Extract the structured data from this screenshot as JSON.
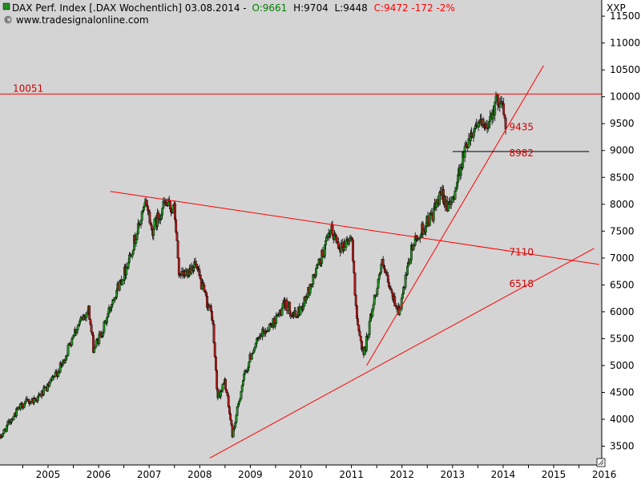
{
  "header": {
    "title": "DAX Perf. Index [.DAX  Wochentlich] 03.08.2014 -",
    "open": "O:9661",
    "high": "H:9704",
    "low": "L:9448",
    "close_change": "C:9472 -172 -2%",
    "source": "© www.tradesignalonline.com",
    "axis_tag": "XXP"
  },
  "colors": {
    "plot_bg": "#d4d4d4",
    "up_candle": "#1f8f1f",
    "down_candle": "#b01818",
    "line": "#ff0000",
    "label": "#d00000",
    "header_value": "#008000",
    "header_change": "#ff0000"
  },
  "chart_data": {
    "type": "candlestick",
    "title": "DAX Perf. Index [.DAX  Wochentlich] 03.08.2014",
    "xlabel": "",
    "ylabel": "",
    "x_ticks": [
      "2005",
      "2006",
      "2007",
      "2008",
      "2009",
      "2010",
      "2011",
      "2012",
      "2013",
      "2014",
      "2015",
      "2016"
    ],
    "y_ticks": [
      3500,
      4000,
      4500,
      5000,
      5500,
      6000,
      6500,
      7000,
      7500,
      8000,
      8500,
      9000,
      9500,
      10000,
      10500,
      11000,
      11500
    ],
    "ylim": [
      3150,
      11800
    ],
    "xlim": [
      2004.55,
      2016.45
    ],
    "grid": false,
    "price_path": [
      [
        2004.55,
        3650
      ],
      [
        2004.8,
        4050
      ],
      [
        2005.0,
        4280
      ],
      [
        2005.3,
        4400
      ],
      [
        2005.5,
        4600
      ],
      [
        2005.8,
        5050
      ],
      [
        2006.0,
        5600
      ],
      [
        2006.3,
        6050
      ],
      [
        2006.4,
        5300
      ],
      [
        2006.6,
        5700
      ],
      [
        2006.8,
        6300
      ],
      [
        2007.0,
        6700
      ],
      [
        2007.2,
        7300
      ],
      [
        2007.45,
        8050
      ],
      [
        2007.55,
        7500
      ],
      [
        2007.8,
        8000
      ],
      [
        2008.0,
        7900
      ],
      [
        2008.1,
        6600
      ],
      [
        2008.4,
        6900
      ],
      [
        2008.6,
        6300
      ],
      [
        2008.75,
        5900
      ],
      [
        2008.85,
        4400
      ],
      [
        2009.0,
        4700
      ],
      [
        2009.15,
        3700
      ],
      [
        2009.35,
        4700
      ],
      [
        2009.55,
        5300
      ],
      [
        2009.75,
        5600
      ],
      [
        2010.0,
        5850
      ],
      [
        2010.2,
        6150
      ],
      [
        2010.4,
        5900
      ],
      [
        2010.6,
        6250
      ],
      [
        2010.9,
        7000
      ],
      [
        2011.1,
        7500
      ],
      [
        2011.3,
        7200
      ],
      [
        2011.5,
        7400
      ],
      [
        2011.62,
        5700
      ],
      [
        2011.75,
        5200
      ],
      [
        2011.9,
        6000
      ],
      [
        2012.1,
        6900
      ],
      [
        2012.3,
        6300
      ],
      [
        2012.45,
        6000
      ],
      [
        2012.7,
        7200
      ],
      [
        2012.95,
        7600
      ],
      [
        2013.1,
        7800
      ],
      [
        2013.3,
        8200
      ],
      [
        2013.45,
        7900
      ],
      [
        2013.6,
        8500
      ],
      [
        2013.8,
        9200
      ],
      [
        2014.0,
        9550
      ],
      [
        2014.15,
        9350
      ],
      [
        2014.3,
        9800
      ],
      [
        2014.45,
        10000
      ],
      [
        2014.55,
        9472
      ]
    ],
    "trendlines": [
      {
        "from": [
          2006.73,
          8240
        ],
        "to": [
          2016.4,
          6880
        ]
      },
      {
        "from": [
          2008.7,
          3280
        ],
        "to": [
          2016.3,
          7180
        ]
      },
      {
        "from": [
          2011.8,
          5000
        ],
        "to": [
          2015.3,
          10580
        ]
      }
    ],
    "horizontal_lines": [
      {
        "value": 10051,
        "label": "10051",
        "x_from": 2004.55,
        "x_to": 2016.45
      },
      {
        "value": 8982,
        "label": "8982",
        "x_from": 2013.5,
        "x_to": 2016.2
      }
    ],
    "annotations": [
      {
        "label": "9435",
        "x": 2014.62,
        "y": 9435
      },
      {
        "label": "8982",
        "x": 2014.62,
        "y": 8950
      },
      {
        "label": "7110",
        "x": 2014.62,
        "y": 7110
      },
      {
        "label": "6518",
        "x": 2014.62,
        "y": 6518
      }
    ]
  }
}
